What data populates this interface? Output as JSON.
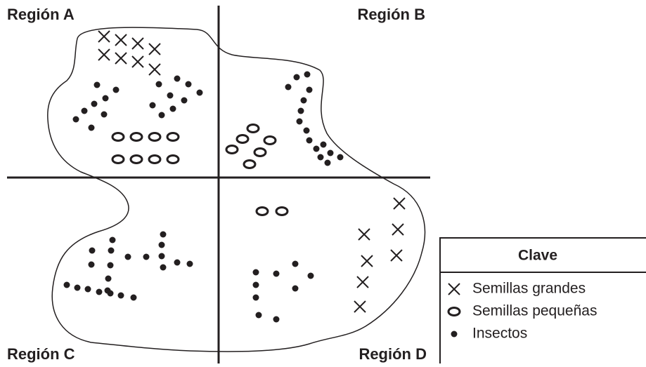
{
  "regions": [
    "Región A",
    "Región B",
    "Región C",
    "Región D"
  ],
  "key": {
    "title": "Clave",
    "items": [
      "Semillas grandes",
      "Semillas pequeñas",
      "Insectos"
    ]
  }
}
